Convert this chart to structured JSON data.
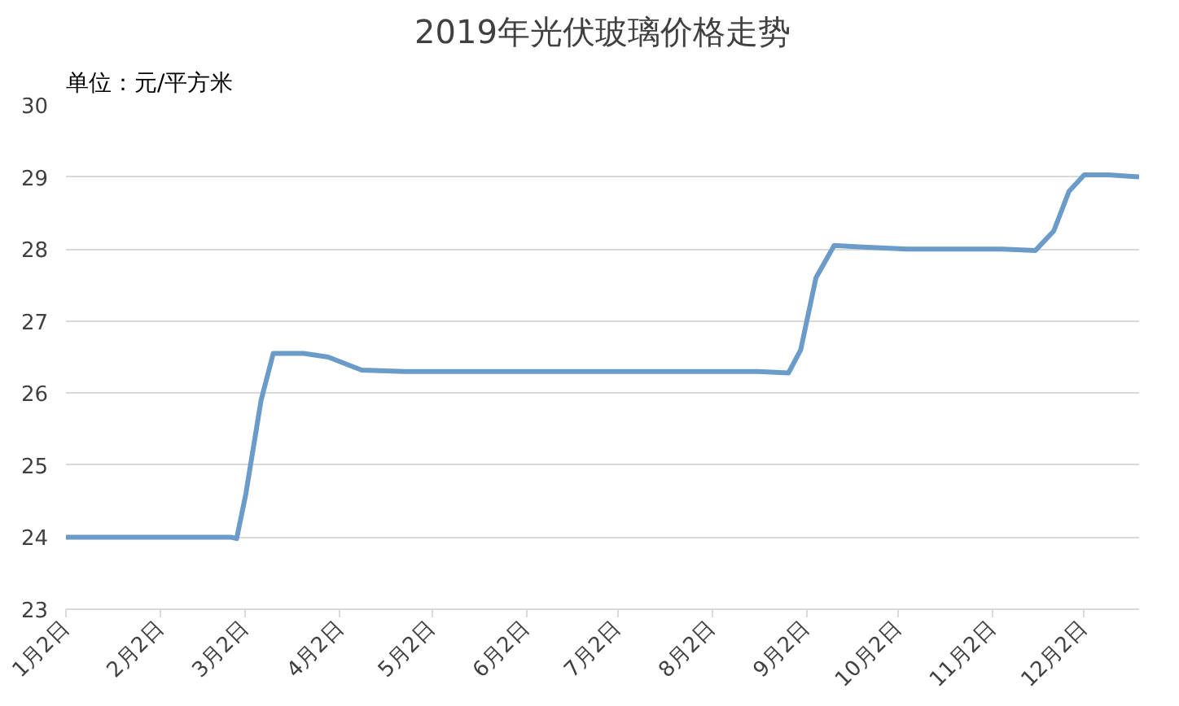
{
  "chart_data": {
    "type": "line",
    "title": "2019年光伏玻璃价格走势",
    "ylabel": "单位：元/平方米",
    "x": [
      "2019-01-02",
      "2019-02-25",
      "2019-02-27",
      "2019-03-02",
      "2019-03-07",
      "2019-03-11",
      "2019-03-21",
      "2019-03-29",
      "2019-04-09",
      "2019-04-23",
      "2019-08-17",
      "2019-08-27",
      "2019-08-31",
      "2019-09-05",
      "2019-09-11",
      "2019-09-19",
      "2019-10-05",
      "2019-11-05",
      "2019-11-16",
      "2019-11-22",
      "2019-11-27",
      "2019-12-02",
      "2019-12-10",
      "2019-12-20"
    ],
    "series": [
      {
        "color": "#6b9bc8",
        "values": [
          24.0,
          24.0,
          23.98,
          24.6,
          25.9,
          26.55,
          26.55,
          26.5,
          26.32,
          26.3,
          26.3,
          26.28,
          26.6,
          27.6,
          28.05,
          28.03,
          28.0,
          28.0,
          27.98,
          28.25,
          28.8,
          29.03,
          29.03,
          29.0
        ]
      }
    ],
    "xlim": [
      "2019-01-02",
      "2019-12-20"
    ],
    "xticks": [
      {
        "value": "2019-01-02",
        "label": "1月2日"
      },
      {
        "value": "2019-02-02",
        "label": "2月2日"
      },
      {
        "value": "2019-03-02",
        "label": "3月2日"
      },
      {
        "value": "2019-04-02",
        "label": "4月2日"
      },
      {
        "value": "2019-05-02",
        "label": "5月2日"
      },
      {
        "value": "2019-06-02",
        "label": "6月2日"
      },
      {
        "value": "2019-07-02",
        "label": "7月2日"
      },
      {
        "value": "2019-08-02",
        "label": "8月2日"
      },
      {
        "value": "2019-09-02",
        "label": "9月2日"
      },
      {
        "value": "2019-10-02",
        "label": "10月2日"
      },
      {
        "value": "2019-11-02",
        "label": "11月2日"
      },
      {
        "value": "2019-12-02",
        "label": "12月2日"
      }
    ],
    "ylim": [
      23,
      30
    ],
    "yticks": [
      23,
      24,
      25,
      26,
      27,
      28,
      29,
      30
    ],
    "grid": "y",
    "line_style": "solid",
    "marker": "none"
  }
}
